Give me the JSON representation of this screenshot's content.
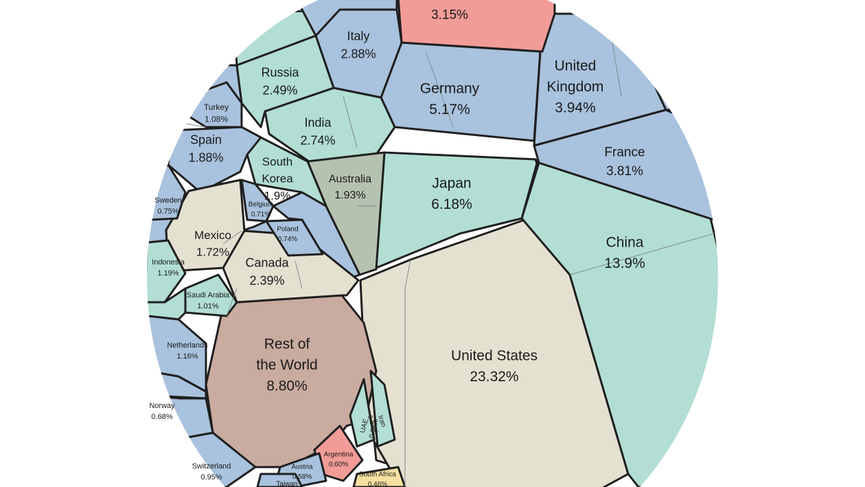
{
  "chart_data": {
    "type": "voronoi",
    "value_unit": "%",
    "colors": {
      "blue": "#a9c2dd",
      "teal": "#b2ded4",
      "beige": "#e5e1d1",
      "green": "#b5c2b0",
      "brown": "#c9aba0",
      "salmon": "#f29c97",
      "yellow": "#f7e0a0",
      "outline": "#1f1f1f"
    },
    "cells": [
      {
        "name": "United States",
        "value_label": "23.32%",
        "value": 23.32,
        "color": "beige"
      },
      {
        "name": "China",
        "value_label": "13.9%",
        "value": 13.9,
        "color": "teal"
      },
      {
        "name": "Rest of the World",
        "value_label": "8.80%",
        "value": 8.8,
        "color": "brown"
      },
      {
        "name": "Japan",
        "value_label": "6.18%",
        "value": 6.18,
        "color": "teal"
      },
      {
        "name": "Germany",
        "value_label": "5.17%",
        "value": 5.17,
        "color": "blue"
      },
      {
        "name": "United Kingdom",
        "value_label": "3.94%",
        "value": 3.94,
        "color": "blue"
      },
      {
        "name": "France",
        "value_label": "3.81%",
        "value": 3.81,
        "color": "blue"
      },
      {
        "name": "",
        "value_label": "3.15%",
        "value": 3.15,
        "color": "salmon"
      },
      {
        "name": "Italy",
        "value_label": "2.88%",
        "value": 2.88,
        "color": "blue"
      },
      {
        "name": "India",
        "value_label": "2.74%",
        "value": 2.74,
        "color": "teal"
      },
      {
        "name": "Russia",
        "value_label": "2.49%",
        "value": 2.49,
        "color": "teal"
      },
      {
        "name": "Canada",
        "value_label": "2.39%",
        "value": 2.39,
        "color": "beige"
      },
      {
        "name": "Australia",
        "value_label": "1.93%",
        "value": 1.93,
        "color": "green"
      },
      {
        "name": "South Korea",
        "value_label": "1.9%",
        "value": 1.9,
        "color": "teal"
      },
      {
        "name": "Spain",
        "value_label": "1.88%",
        "value": 1.88,
        "color": "blue"
      },
      {
        "name": "Mexico",
        "value_label": "1.72%",
        "value": 1.72,
        "color": "beige"
      },
      {
        "name": "Indonesia",
        "value_label": "1.19%",
        "value": 1.19,
        "color": "teal"
      },
      {
        "name": "Netherlands",
        "value_label": "1.16%",
        "value": 1.16,
        "color": "blue"
      },
      {
        "name": "Turkey",
        "value_label": "1.08%",
        "value": 1.08,
        "color": "blue"
      },
      {
        "name": "Saudi Arabia",
        "value_label": "1.01%",
        "value": 1.01,
        "color": "teal"
      },
      {
        "name": "Switzerland",
        "value_label": "0.95%",
        "value": 0.95,
        "color": "blue"
      },
      {
        "name": "Sweden",
        "value_label": "0.75%",
        "value": 0.75,
        "color": "blue"
      },
      {
        "name": "Poland",
        "value_label": "0.74%",
        "value": 0.74,
        "color": "blue"
      },
      {
        "name": "Belgium",
        "value_label": "0.71%",
        "value": 0.71,
        "color": "blue"
      },
      {
        "name": "Norway",
        "value_label": "0.68%",
        "value": 0.68,
        "color": "blue"
      },
      {
        "name": "Argentina",
        "value_label": "0.60%",
        "value": 0.6,
        "color": "salmon"
      },
      {
        "name": "UAE",
        "value_label": "0.56%",
        "value": 0.56,
        "color": "teal"
      },
      {
        "name": "Austria",
        "value_label": "0.58%",
        "value": 0.58,
        "color": "blue"
      },
      {
        "name": "Iran",
        "value_label": "0.54%",
        "value": 0.54,
        "color": "teal"
      },
      {
        "name": "South Africa",
        "value_label": "0.46%",
        "value": 0.46,
        "color": "yellow"
      },
      {
        "name": "Taiwan",
        "value_label": "",
        "value": null,
        "color": "blue"
      }
    ]
  }
}
